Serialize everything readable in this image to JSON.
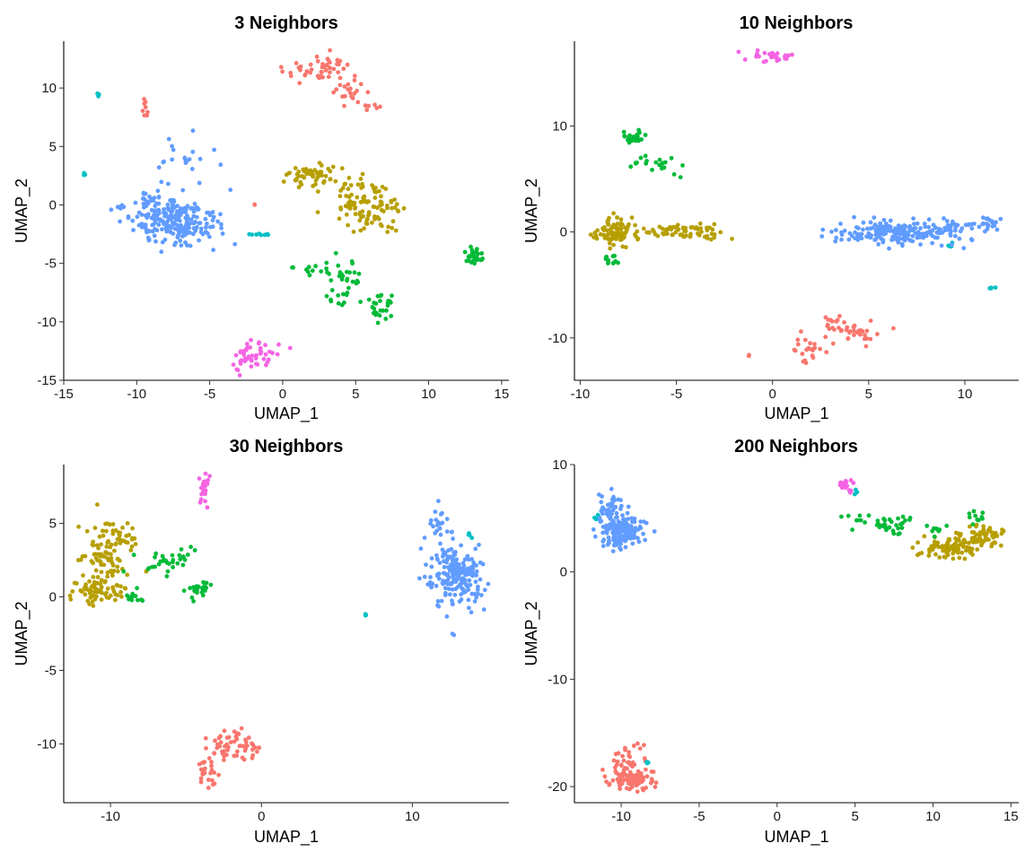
{
  "palette": [
    "#F8766D",
    "#B79F00",
    "#00BA38",
    "#00BFC4",
    "#619CFF",
    "#F564E3"
  ],
  "chart_data": [
    {
      "type": "scatter",
      "title": "3 Neighbors",
      "xlabel": "UMAP_1",
      "ylabel": "UMAP_2",
      "xlim": [
        -15,
        15.5
      ],
      "ylim": [
        -15,
        14
      ],
      "xticks": [
        -15,
        -10,
        -5,
        0,
        5,
        10,
        15
      ],
      "yticks": [
        -15,
        -10,
        -5,
        0,
        5,
        10
      ],
      "tick_labels_x": [
        "-15",
        "-10",
        "-5",
        "0",
        "5",
        "10",
        "15"
      ],
      "tick_labels_y": [
        "-15",
        "-10",
        "-5",
        "0",
        "5",
        "10"
      ],
      "clusters": [
        {
          "c": 0,
          "x": 2.5,
          "y": 11.5,
          "sx": 1.2,
          "sy": 0.7,
          "n": 50
        },
        {
          "c": 0,
          "x": 4.5,
          "y": 9.5,
          "sx": 1.0,
          "sy": 0.6,
          "n": 18
        },
        {
          "c": 0,
          "x": 5.8,
          "y": 8.4,
          "sx": 0.4,
          "sy": 0.2,
          "n": 8
        },
        {
          "c": 0,
          "x": -9.4,
          "y": 8.4,
          "sx": 0.12,
          "sy": 0.4,
          "n": 8
        },
        {
          "c": 0,
          "x": -1.9,
          "y": 0.0,
          "sx": 0.05,
          "sy": 0.05,
          "n": 2
        },
        {
          "c": 1,
          "x": 2.2,
          "y": 2.4,
          "sx": 0.9,
          "sy": 0.6,
          "n": 55
        },
        {
          "c": 1,
          "x": 5.5,
          "y": 0.5,
          "sx": 0.9,
          "sy": 0.8,
          "n": 60
        },
        {
          "c": 1,
          "x": 6.0,
          "y": -1.5,
          "sx": 0.9,
          "sy": 0.6,
          "n": 30
        },
        {
          "c": 1,
          "x": 7.6,
          "y": -0.3,
          "sx": 0.5,
          "sy": 0.4,
          "n": 14
        },
        {
          "c": 2,
          "x": 4.2,
          "y": -6.0,
          "sx": 0.6,
          "sy": 0.6,
          "n": 25
        },
        {
          "c": 2,
          "x": 2.0,
          "y": -5.6,
          "sx": 0.6,
          "sy": 0.3,
          "n": 12
        },
        {
          "c": 2,
          "x": 6.6,
          "y": -9.0,
          "sx": 0.4,
          "sy": 0.6,
          "n": 28
        },
        {
          "c": 2,
          "x": 13.0,
          "y": -4.3,
          "sx": 0.35,
          "sy": 0.35,
          "n": 30
        },
        {
          "c": 2,
          "x": 3.8,
          "y": -7.5,
          "sx": 0.4,
          "sy": 0.5,
          "n": 10
        },
        {
          "c": 3,
          "x": -12.6,
          "y": 9.5,
          "sx": 0.06,
          "sy": 0.1,
          "n": 4
        },
        {
          "c": 3,
          "x": -13.6,
          "y": 2.6,
          "sx": 0.06,
          "sy": 0.1,
          "n": 4
        },
        {
          "c": 3,
          "x": -1.8,
          "y": -2.5,
          "sx": 0.45,
          "sy": 0.08,
          "n": 8
        },
        {
          "c": 4,
          "x": -7.3,
          "y": -1.5,
          "sx": 1.5,
          "sy": 1.0,
          "n": 220
        },
        {
          "c": 4,
          "x": -9.2,
          "y": 0.5,
          "sx": 0.4,
          "sy": 0.5,
          "n": 25
        },
        {
          "c": 4,
          "x": -6.8,
          "y": 3.5,
          "sx": 0.9,
          "sy": 0.9,
          "n": 22
        },
        {
          "c": 4,
          "x": -11.2,
          "y": 0.0,
          "sx": 0.3,
          "sy": 0.3,
          "n": 6
        },
        {
          "c": 5,
          "x": -2.0,
          "y": -12.7,
          "sx": 0.8,
          "sy": 0.5,
          "n": 40
        },
        {
          "c": 5,
          "x": -2.9,
          "y": -13.7,
          "sx": 0.2,
          "sy": 0.3,
          "n": 8
        }
      ]
    },
    {
      "type": "scatter",
      "title": "10 Neighbors",
      "xlabel": "UMAP_1",
      "ylabel": "UMAP_2",
      "xlim": [
        -10.3,
        12.8
      ],
      "ylim": [
        -14,
        18
      ],
      "xticks": [
        -10,
        -5,
        0,
        5,
        10
      ],
      "yticks": [
        -10,
        0,
        10
      ],
      "tick_labels_x": [
        "-10",
        "-5",
        "0",
        "5",
        "10"
      ],
      "tick_labels_y": [
        "-10",
        "0",
        "10"
      ],
      "clusters": [
        {
          "c": 0,
          "x": 3.8,
          "y": -9.3,
          "sx": 0.8,
          "sy": 0.6,
          "n": 45
        },
        {
          "c": 0,
          "x": 2.0,
          "y": -11.3,
          "sx": 0.5,
          "sy": 0.7,
          "n": 22
        },
        {
          "c": 0,
          "x": -1.3,
          "y": -11.6,
          "sx": 0.05,
          "sy": 0.05,
          "n": 2
        },
        {
          "c": 1,
          "x": -8.3,
          "y": 0.0,
          "sx": 0.4,
          "sy": 0.8,
          "n": 60
        },
        {
          "c": 1,
          "x": -5.5,
          "y": 0.0,
          "sx": 1.4,
          "sy": 0.4,
          "n": 80
        },
        {
          "c": 1,
          "x": -3.5,
          "y": 0.2,
          "sx": 0.3,
          "sy": 0.4,
          "n": 15
        },
        {
          "c": 2,
          "x": -7.2,
          "y": 9.0,
          "sx": 0.3,
          "sy": 0.3,
          "n": 25
        },
        {
          "c": 2,
          "x": -6.2,
          "y": 6.6,
          "sx": 0.7,
          "sy": 0.5,
          "n": 22
        },
        {
          "c": 2,
          "x": -8.3,
          "y": -2.6,
          "sx": 0.25,
          "sy": 0.3,
          "n": 12
        },
        {
          "c": 3,
          "x": 9.3,
          "y": -1.3,
          "sx": 0.15,
          "sy": 0.1,
          "n": 4
        },
        {
          "c": 3,
          "x": 11.4,
          "y": -5.3,
          "sx": 0.1,
          "sy": 0.05,
          "n": 4
        },
        {
          "c": 4,
          "x": 6.5,
          "y": 0.0,
          "sx": 1.6,
          "sy": 0.6,
          "n": 200
        },
        {
          "c": 4,
          "x": 9.8,
          "y": 0.6,
          "sx": 0.9,
          "sy": 0.3,
          "n": 30
        },
        {
          "c": 4,
          "x": 11.4,
          "y": 1.1,
          "sx": 0.3,
          "sy": 0.15,
          "n": 8
        },
        {
          "c": 5,
          "x": -0.1,
          "y": 16.6,
          "sx": 0.7,
          "sy": 0.25,
          "n": 30
        }
      ]
    },
    {
      "type": "scatter",
      "title": "30 Neighbors",
      "xlabel": "UMAP_1",
      "ylabel": "UMAP_2",
      "xlim": [
        -13.1,
        16.4
      ],
      "ylim": [
        -14,
        9
      ],
      "xticks": [
        -10,
        0,
        10
      ],
      "yticks": [
        -10,
        -5,
        0,
        5
      ],
      "tick_labels_x": [
        "-10",
        "0",
        "10"
      ],
      "tick_labels_y": [
        "-10",
        "-5",
        "0",
        "5"
      ],
      "clusters": [
        {
          "c": 0,
          "x": -1.8,
          "y": -10.0,
          "sx": 0.8,
          "sy": 0.5,
          "n": 55
        },
        {
          "c": 0,
          "x": -3.5,
          "y": -11.8,
          "sx": 0.4,
          "sy": 0.7,
          "n": 25
        },
        {
          "c": 1,
          "x": -10.3,
          "y": 3.0,
          "sx": 0.8,
          "sy": 1.4,
          "n": 90
        },
        {
          "c": 1,
          "x": -11.0,
          "y": 0.3,
          "sx": 0.8,
          "sy": 0.5,
          "n": 60
        },
        {
          "c": 1,
          "x": -9.0,
          "y": 4.0,
          "sx": 0.5,
          "sy": 0.5,
          "n": 20
        },
        {
          "c": 2,
          "x": -6.5,
          "y": 2.3,
          "sx": 0.9,
          "sy": 0.5,
          "n": 25
        },
        {
          "c": 2,
          "x": -4.2,
          "y": 0.5,
          "sx": 0.3,
          "sy": 0.3,
          "n": 25
        },
        {
          "c": 2,
          "x": -8.5,
          "y": 0.0,
          "sx": 0.4,
          "sy": 0.2,
          "n": 12
        },
        {
          "c": 2,
          "x": -5.0,
          "y": 2.8,
          "sx": 0.3,
          "sy": 0.3,
          "n": 8
        },
        {
          "c": 3,
          "x": 13.8,
          "y": 4.2,
          "sx": 0.15,
          "sy": 0.2,
          "n": 4
        },
        {
          "c": 3,
          "x": 6.9,
          "y": -1.2,
          "sx": 0.05,
          "sy": 0.05,
          "n": 3
        },
        {
          "c": 4,
          "x": 13.0,
          "y": 1.5,
          "sx": 0.9,
          "sy": 1.0,
          "n": 200
        },
        {
          "c": 4,
          "x": 12.0,
          "y": 4.5,
          "sx": 0.4,
          "sy": 0.8,
          "n": 25
        },
        {
          "c": 5,
          "x": -3.8,
          "y": 7.3,
          "sx": 0.15,
          "sy": 0.5,
          "n": 25
        }
      ]
    },
    {
      "type": "scatter",
      "title": "200 Neighbors",
      "xlabel": "UMAP_1",
      "ylabel": "UMAP_2",
      "xlim": [
        -13,
        15.5
      ],
      "ylim": [
        -21.5,
        10
      ],
      "xticks": [
        -10,
        -5,
        0,
        5,
        10,
        15
      ],
      "yticks": [
        -20,
        -10,
        0,
        10
      ],
      "tick_labels_x": [
        "-10",
        "-5",
        "0",
        "5",
        "10",
        "15"
      ],
      "tick_labels_y": [
        "-20",
        "-10",
        "0",
        "10"
      ],
      "clusters": [
        {
          "c": 0,
          "x": -9.5,
          "y": -19.2,
          "sx": 0.7,
          "sy": 0.5,
          "n": 90
        },
        {
          "c": 0,
          "x": -9.5,
          "y": -17.3,
          "sx": 0.5,
          "sy": 0.8,
          "n": 30
        },
        {
          "c": 1,
          "x": 11.0,
          "y": 2.2,
          "sx": 0.9,
          "sy": 0.5,
          "n": 90
        },
        {
          "c": 1,
          "x": 13.2,
          "y": 3.4,
          "sx": 0.7,
          "sy": 0.5,
          "n": 60
        },
        {
          "c": 2,
          "x": 7.0,
          "y": 4.5,
          "sx": 1.3,
          "sy": 0.5,
          "n": 40
        },
        {
          "c": 2,
          "x": 12.8,
          "y": 5.2,
          "sx": 0.3,
          "sy": 0.3,
          "n": 10
        },
        {
          "c": 2,
          "x": 10.5,
          "y": 3.8,
          "sx": 0.4,
          "sy": 0.3,
          "n": 8
        },
        {
          "c": 3,
          "x": -11.5,
          "y": 5.0,
          "sx": 0.2,
          "sy": 0.15,
          "n": 6
        },
        {
          "c": 3,
          "x": -8.4,
          "y": -17.8,
          "sx": 0.1,
          "sy": 0.1,
          "n": 4
        },
        {
          "c": 3,
          "x": 5.0,
          "y": 7.5,
          "sx": 0.1,
          "sy": 0.1,
          "n": 3
        },
        {
          "c": 4,
          "x": -10.0,
          "y": 3.8,
          "sx": 0.7,
          "sy": 0.8,
          "n": 180
        },
        {
          "c": 4,
          "x": -10.7,
          "y": 6.0,
          "sx": 0.4,
          "sy": 0.7,
          "n": 30
        },
        {
          "c": 5,
          "x": 4.5,
          "y": 8.0,
          "sx": 0.3,
          "sy": 0.3,
          "n": 18
        }
      ]
    }
  ]
}
